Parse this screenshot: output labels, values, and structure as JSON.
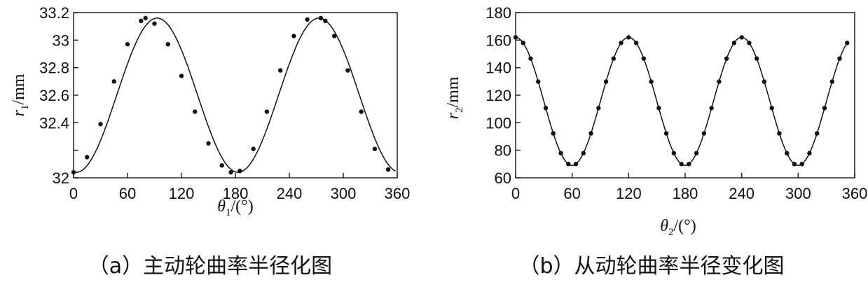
{
  "chart_data": [
    {
      "type": "line",
      "xlabel_symbol": "θ",
      "xlabel_sub": "1",
      "xlabel_unit": "/(°)",
      "ylabel_symbol": "r",
      "ylabel_sub": "1",
      "ylabel_unit": "/mm",
      "caption": "（a）主动轮曲率半径化图",
      "xlim": [
        0,
        360
      ],
      "ylim": [
        32,
        33.2
      ],
      "xticks": [
        0,
        60,
        120,
        180,
        240,
        300,
        360
      ],
      "yticks": [
        32,
        32.2,
        32.4,
        32.6,
        32.8,
        33,
        33.2
      ],
      "ytick_labels": [
        "32",
        "",
        "32.4",
        "32.6",
        "32.8",
        "33",
        "33.2"
      ],
      "grid": false,
      "series": [
        {
          "x": [
            0,
            15,
            30,
            45,
            60,
            75,
            80,
            90,
            105,
            120,
            135,
            150,
            165,
            175,
            185,
            200,
            215,
            230,
            245,
            260,
            275,
            280,
            290,
            305,
            320,
            335,
            350
          ],
          "values": [
            32.04,
            32.15,
            32.39,
            32.7,
            32.97,
            33.14,
            33.16,
            33.12,
            32.97,
            32.74,
            32.48,
            32.25,
            32.09,
            32.04,
            32.05,
            32.21,
            32.48,
            32.78,
            33.03,
            33.15,
            33.16,
            33.14,
            33.03,
            32.78,
            32.48,
            32.21,
            32.06
          ]
        }
      ]
    },
    {
      "type": "line",
      "xlabel_symbol": "θ",
      "xlabel_sub": "2",
      "xlabel_unit": "/(°)",
      "ylabel_symbol": "r",
      "ylabel_sub": "2",
      "ylabel_unit": "/mm",
      "caption": "（b）从动轮曲率半径变化图",
      "xlim": [
        0,
        360
      ],
      "ylim": [
        60,
        180
      ],
      "xticks": [
        0,
        60,
        120,
        180,
        240,
        300,
        360
      ],
      "yticks": [
        60,
        80,
        100,
        120,
        140,
        160,
        180
      ],
      "ytick_labels": [
        "60",
        "80",
        "100",
        "120",
        "140",
        "160",
        "180"
      ],
      "grid": false,
      "series": [
        {
          "period": 120,
          "max": 162,
          "min": 69
        }
      ]
    }
  ]
}
